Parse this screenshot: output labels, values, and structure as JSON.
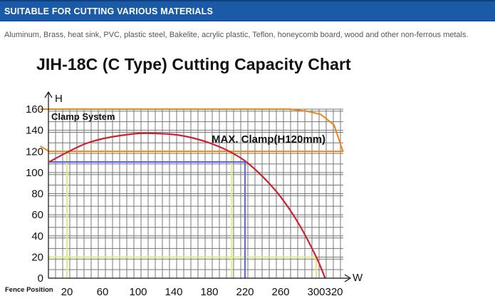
{
  "header": {
    "banner_title": "SUITABLE FOR CUTTING VARIOUS MATERIALS",
    "description": "Aluminum, Brass, heat sink, PVC, plastic steel, Bakelite, acrylic plastic, Teflon, honeycomb board, wood and other non-ferrous metals."
  },
  "colors": {
    "banner": "#1a5aa6",
    "capacity_curve": "#cc2233",
    "clamp_outline": "#e8861c",
    "blue_guide": "#5b6ee0",
    "yellow_guide": "#dfee7a",
    "grid": "#777777"
  },
  "chart_data": {
    "type": "line",
    "title": "JIH-18C (C Type) Cutting Capacity Chart",
    "xlabel": "W",
    "ylabel": "H",
    "x_ticks": [
      "20",
      "60",
      "100",
      "140",
      "180",
      "220",
      "260",
      "300",
      "320"
    ],
    "x_tick_values": [
      20,
      60,
      100,
      140,
      180,
      220,
      260,
      300,
      320
    ],
    "y_ticks": [
      "0",
      "20",
      "40",
      "60",
      "80",
      "100",
      "120",
      "140",
      "160"
    ],
    "y_tick_values": [
      0,
      20,
      40,
      60,
      80,
      100,
      120,
      140,
      160
    ],
    "xlim": [
      -10,
      330
    ],
    "ylim": [
      0,
      160
    ],
    "grid": true,
    "fence_label": "Fence Position",
    "clamp_label": "Clamp System",
    "max_clamp_label": "MAX. Clamp(H120mm)",
    "series": [
      {
        "kind": "capacity-curve",
        "x": [
          0,
          20,
          40,
          60,
          80,
          100,
          120,
          140,
          160,
          180,
          200,
          220,
          240,
          260,
          280,
          300,
          310
        ],
        "y": [
          110,
          119,
          127,
          132,
          135,
          137,
          137,
          136,
          133,
          128,
          121,
          111,
          96,
          77,
          52,
          20,
          0
        ]
      },
      {
        "kind": "clamp-system",
        "x": [
          -10,
          270,
          290,
          305,
          320,
          330,
          320,
          0,
          -10
        ],
        "y": [
          160,
          160,
          158,
          155,
          145,
          120,
          120,
          120,
          125
        ]
      },
      {
        "kind": "guide",
        "x": [
          0,
          220,
          220
        ],
        "y": [
          110,
          110,
          0
        ]
      },
      {
        "kind": "guide",
        "x": [
          20,
          20,
          205,
          205
        ],
        "y": [
          0,
          120,
          120,
          0
        ]
      },
      {
        "kind": "guide",
        "x": [
          0,
          300,
          300
        ],
        "y": [
          20,
          20,
          0
        ]
      }
    ]
  }
}
